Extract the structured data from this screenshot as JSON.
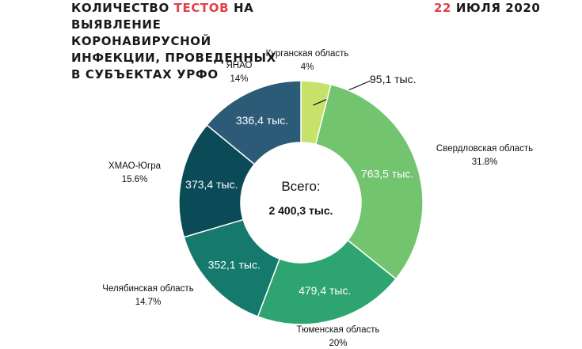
{
  "title": {
    "prefix": "КОЛИЧЕСТВО ",
    "highlight": "ТЕСТОВ",
    "line1_suffix": " НА",
    "line2": "ВЫЯВЛЕНИЕ КОРОНАВИРУСНОЙ",
    "line3": "ИНФЕКЦИИ, ПРОВЕДЕННЫХ",
    "line4": "В СУБЪЕКТАХ УРФО"
  },
  "date": {
    "day": "22",
    "rest": " ИЮЛЯ 2020"
  },
  "colors": {
    "accent": "#e0414a",
    "text": "#1a1a1a"
  },
  "chart_data": {
    "type": "pie",
    "style": "donut",
    "total_label": "Всего:",
    "total_value": "2 400,3 тыс.",
    "unit": "тыс.",
    "slices": [
      {
        "name": "Курганская область",
        "value": 95.1,
        "value_label": "95,1 тыс.",
        "percent_label": "4%",
        "color": "#c6e26a"
      },
      {
        "name": "Свердловская область",
        "value": 763.5,
        "value_label": "763,5 тыс.",
        "percent_label": "31.8%",
        "color": "#72c46f"
      },
      {
        "name": "Тюменская область",
        "value": 479.4,
        "value_label": "479,4 тыс.",
        "percent_label": "20%",
        "color": "#2ea471"
      },
      {
        "name": "Челябинская область",
        "value": 352.1,
        "value_label": "352,1 тыс.",
        "percent_label": "14.7%",
        "color": "#157a6c"
      },
      {
        "name": "ХМАО-Югра",
        "value": 373.4,
        "value_label": "373,4 тыс.",
        "percent_label": "15.6%",
        "color": "#0a4b57"
      },
      {
        "name": "ЯНАО",
        "value": 336.4,
        "value_label": "336,4 тыс.",
        "percent_label": "14%",
        "color": "#2c5b78"
      }
    ]
  }
}
